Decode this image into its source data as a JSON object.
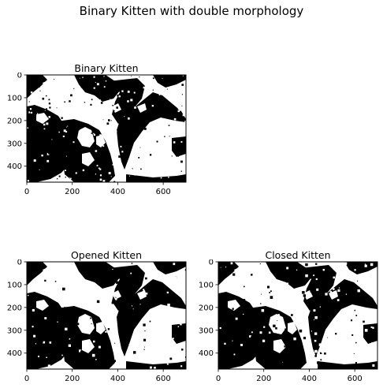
{
  "figure": {
    "suptitle": "Binary Kitten with double morphology"
  },
  "panels": [
    {
      "title": "Binary Kitten",
      "x_ticks": [
        "0",
        "200",
        "400",
        "600"
      ],
      "x_tick_values": [
        0,
        200,
        400,
        600
      ],
      "y_ticks": [
        "0",
        "100",
        "200",
        "300",
        "400"
      ],
      "y_tick_values": [
        0,
        100,
        200,
        300,
        400
      ],
      "x_range": [
        0,
        700
      ],
      "y_range": [
        0,
        470
      ],
      "variant": "binary"
    },
    {
      "title": "Opened Kitten",
      "x_ticks": [
        "0",
        "200",
        "400",
        "600"
      ],
      "x_tick_values": [
        0,
        200,
        400,
        600
      ],
      "y_ticks": [
        "0",
        "100",
        "200",
        "300",
        "400"
      ],
      "y_tick_values": [
        0,
        100,
        200,
        300,
        400
      ],
      "x_range": [
        0,
        700
      ],
      "y_range": [
        0,
        470
      ],
      "variant": "opened"
    },
    {
      "title": "Closed Kitten",
      "x_ticks": [
        "0",
        "200",
        "400",
        "600"
      ],
      "x_tick_values": [
        0,
        200,
        400,
        600
      ],
      "y_ticks": [
        "0",
        "100",
        "200",
        "300",
        "400"
      ],
      "y_tick_values": [
        0,
        100,
        200,
        300,
        400
      ],
      "x_range": [
        0,
        700
      ],
      "y_range": [
        0,
        470
      ],
      "variant": "closed"
    }
  ]
}
